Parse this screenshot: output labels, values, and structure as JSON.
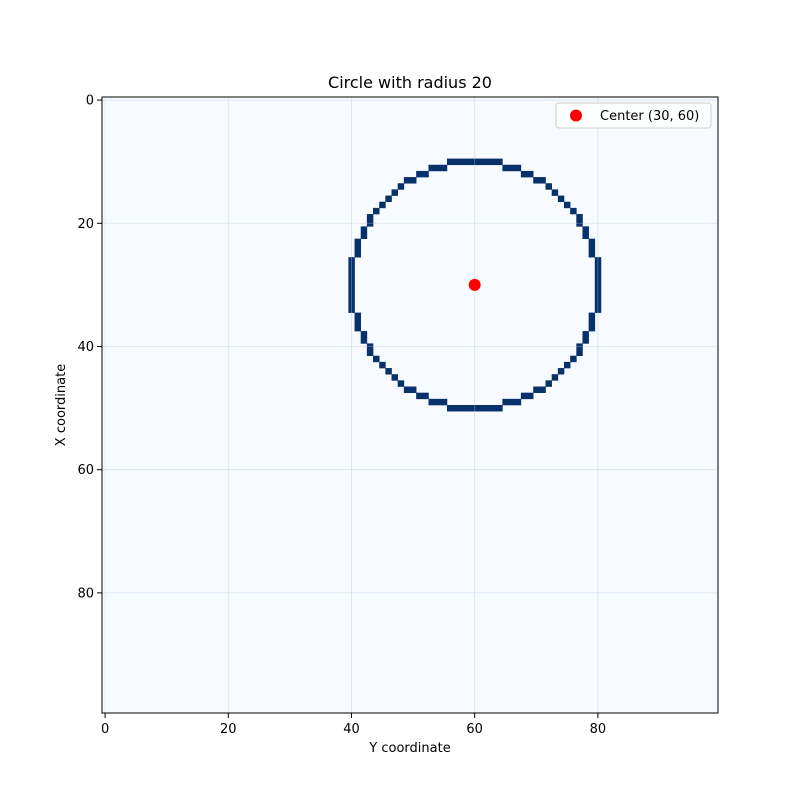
{
  "chart_data": {
    "type": "heatmap",
    "title": "Circle with radius 20",
    "xlabel": "Y coordinate",
    "ylabel": "X coordinate",
    "grid_size": [
      100,
      100
    ],
    "xlim": [
      -0.5,
      99.5
    ],
    "ylim": [
      99.5,
      -0.5
    ],
    "xticks": [
      0,
      20,
      40,
      60,
      80
    ],
    "yticks": [
      0,
      20,
      40,
      60,
      80
    ],
    "grid": true,
    "circle": {
      "center_x": 30,
      "center_y": 60,
      "radius": 20
    },
    "center_point": {
      "x": 30,
      "y": 60,
      "label": "Center (30, 60)",
      "color": "#ff0000"
    },
    "legend_placement": "top-right",
    "colors": {
      "background": "#f7fbff",
      "circle_cells": "#08306b",
      "grid": "#b0c4de"
    }
  }
}
